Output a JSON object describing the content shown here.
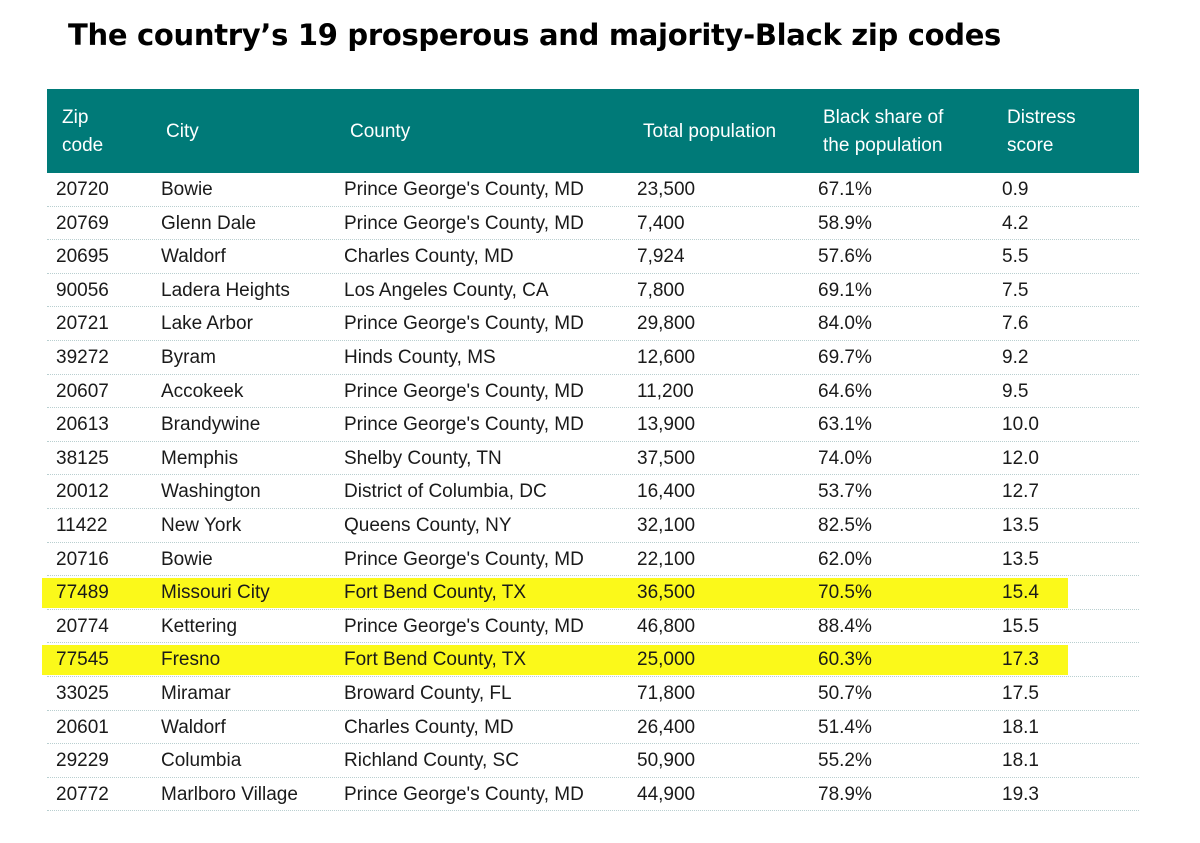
{
  "title": "The country’s 19 prosperous and majority-Black zip codes",
  "highlight_color": "#fbf91a",
  "header_color": "#007a78",
  "columns": [
    [
      "Zip",
      "code"
    ],
    [
      "City"
    ],
    [
      "County"
    ],
    [
      "Total population"
    ],
    [
      "Black share of",
      "the population"
    ],
    [
      "Distress",
      "score"
    ]
  ],
  "rows": [
    {
      "cells": [
        "20720",
        "Bowie",
        "Prince George's County, MD",
        "23,500",
        "67.1%",
        "0.9"
      ],
      "highlighted": false
    },
    {
      "cells": [
        "20769",
        "Glenn Dale",
        "Prince George's County, MD",
        "7,400",
        "58.9%",
        "4.2"
      ],
      "highlighted": false
    },
    {
      "cells": [
        "20695",
        "Waldorf",
        "Charles County, MD",
        "7,924",
        "57.6%",
        "5.5"
      ],
      "highlighted": false
    },
    {
      "cells": [
        "90056",
        "Ladera Heights",
        "Los Angeles County, CA",
        "7,800",
        "69.1%",
        "7.5"
      ],
      "highlighted": false
    },
    {
      "cells": [
        "20721",
        "Lake Arbor",
        "Prince George's County, MD",
        "29,800",
        "84.0%",
        "7.6"
      ],
      "highlighted": false
    },
    {
      "cells": [
        "39272",
        "Byram",
        "Hinds County, MS",
        "12,600",
        "69.7%",
        "9.2"
      ],
      "highlighted": false
    },
    {
      "cells": [
        "20607",
        "Accokeek",
        "Prince George's County, MD",
        "11,200",
        "64.6%",
        "9.5"
      ],
      "highlighted": false
    },
    {
      "cells": [
        "20613",
        "Brandywine",
        "Prince George's County, MD",
        "13,900",
        "63.1%",
        "10.0"
      ],
      "highlighted": false
    },
    {
      "cells": [
        "38125",
        "Memphis",
        "Shelby County, TN",
        "37,500",
        "74.0%",
        "12.0"
      ],
      "highlighted": false
    },
    {
      "cells": [
        "20012",
        "Washington",
        "District of Columbia, DC",
        "16,400",
        "53.7%",
        "12.7"
      ],
      "highlighted": false
    },
    {
      "cells": [
        "11422",
        "New York",
        "Queens County, NY",
        "32,100",
        "82.5%",
        "13.5"
      ],
      "highlighted": false
    },
    {
      "cells": [
        "20716",
        "Bowie",
        "Prince George's County, MD",
        "22,100",
        "62.0%",
        "13.5"
      ],
      "highlighted": false
    },
    {
      "cells": [
        "77489",
        "Missouri City",
        "Fort Bend County, TX",
        "36,500",
        "70.5%",
        "15.4"
      ],
      "highlighted": true
    },
    {
      "cells": [
        "20774",
        "Kettering",
        "Prince George's County, MD",
        "46,800",
        "88.4%",
        "15.5"
      ],
      "highlighted": false
    },
    {
      "cells": [
        "77545",
        "Fresno",
        "Fort Bend County, TX",
        "25,000",
        "60.3%",
        "17.3"
      ],
      "highlighted": true
    },
    {
      "cells": [
        "33025",
        "Miramar",
        "Broward County, FL",
        "71,800",
        "50.7%",
        "17.5"
      ],
      "highlighted": false
    },
    {
      "cells": [
        "20601",
        "Waldorf",
        "Charles County, MD",
        "26,400",
        "51.4%",
        "18.1"
      ],
      "highlighted": false
    },
    {
      "cells": [
        "29229",
        "Columbia",
        "Richland County, SC",
        "50,900",
        "55.2%",
        "18.1"
      ],
      "highlighted": false
    },
    {
      "cells": [
        "20772",
        "Marlboro Village",
        "Prince George's County, MD",
        "44,900",
        "78.9%",
        "19.3"
      ],
      "highlighted": false
    }
  ]
}
